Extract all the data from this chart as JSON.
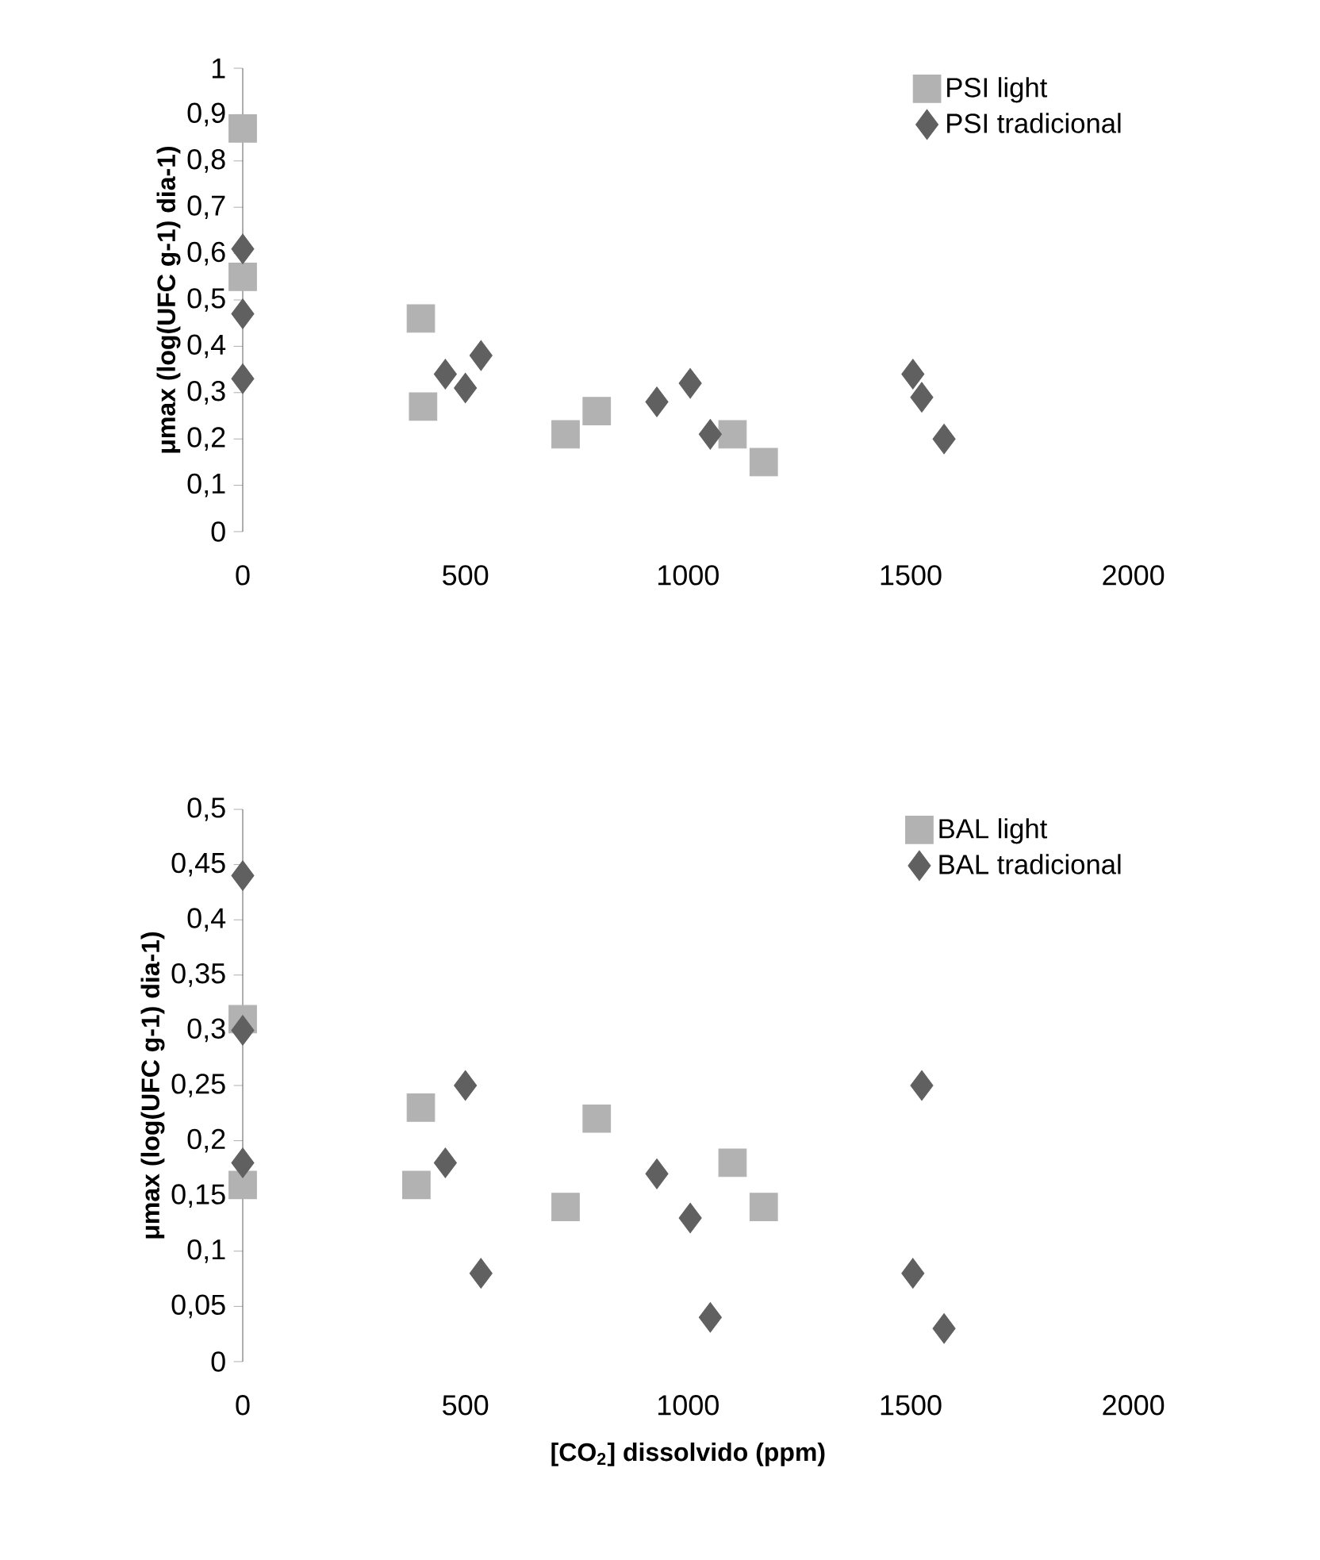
{
  "chart_data": [
    {
      "type": "scatter",
      "ylabel": "μmax (log(UFC g-1) dia-1)",
      "xlim": [
        0,
        2000
      ],
      "xticks": [
        0,
        500,
        1000,
        1500,
        2000
      ],
      "ylim": [
        0,
        1
      ],
      "yticks": [
        0,
        {
          "value": 0.1,
          "label": "0,1"
        },
        {
          "value": 0.2,
          "label": "0,2"
        },
        {
          "value": 0.3,
          "label": "0,3"
        },
        {
          "value": 0.4,
          "label": "0,4"
        },
        {
          "value": 0.5,
          "label": "0,5"
        },
        {
          "value": 0.6,
          "label": "0,6"
        },
        {
          "value": 0.7,
          "label": "0,7"
        },
        {
          "value": 0.8,
          "label": "0,8"
        },
        {
          "value": 0.9,
          "label": "0,9"
        },
        1
      ],
      "grid": false,
      "legend": "top right",
      "series": [
        {
          "name": "PSI light",
          "color": "#b2b2b2",
          "marker": "square",
          "x": [
            0,
            0,
            400,
            405,
            725,
            795,
            1100,
            1170
          ],
          "values": [
            0.87,
            0.55,
            0.46,
            0.27,
            0.21,
            0.26,
            0.21,
            0.15
          ]
        },
        {
          "name": "PSI tradicional",
          "color": "#606060",
          "marker": "diamond",
          "x": [
            0,
            0,
            0,
            455,
            500,
            535,
            930,
            1005,
            1050,
            1505,
            1525,
            1575
          ],
          "values": [
            0.61,
            0.47,
            0.33,
            0.34,
            0.31,
            0.38,
            0.28,
            0.32,
            0.21,
            0.34,
            0.29,
            0.2
          ]
        }
      ]
    },
    {
      "type": "scatter",
      "ylabel": "μmax (log(UFC g-1) dia-1)",
      "xlabel": "[CO$_{2}$] dissolvido (ppm)",
      "xlim": [
        0,
        2000
      ],
      "xticks": [
        0,
        500,
        1000,
        1500,
        2000
      ],
      "ylim": [
        0,
        0.5
      ],
      "yticks": [
        0,
        {
          "value": 0.05,
          "label": "0,05"
        },
        {
          "value": 0.1,
          "label": "0,1"
        },
        {
          "value": 0.15,
          "label": "0,15"
        },
        {
          "value": 0.2,
          "label": "0,2"
        },
        {
          "value": 0.25,
          "label": "0,25"
        },
        {
          "value": 0.3,
          "label": "0,3"
        },
        {
          "value": 0.35,
          "label": "0,35"
        },
        {
          "value": 0.4,
          "label": "0,4"
        },
        {
          "value": 0.45,
          "label": "0,45"
        },
        {
          "value": 0.5,
          "label": "0,5"
        }
      ],
      "grid": false,
      "legend": "top right",
      "series": [
        {
          "name": "BAL light",
          "color": "#b2b2b2",
          "marker": "square",
          "x": [
            0,
            0,
            400,
            390,
            725,
            795,
            1100,
            1170
          ],
          "values": [
            0.31,
            0.16,
            0.23,
            0.16,
            0.14,
            0.22,
            0.18,
            0.14
          ]
        },
        {
          "name": "BAL tradicional",
          "color": "#606060",
          "marker": "diamond",
          "x": [
            0,
            0,
            0,
            455,
            500,
            535,
            930,
            1005,
            1050,
            1505,
            1525,
            1575
          ],
          "values": [
            0.44,
            0.3,
            0.18,
            0.18,
            0.25,
            0.08,
            0.17,
            0.13,
            0.04,
            0.08,
            0.25,
            0.03
          ]
        }
      ]
    }
  ]
}
